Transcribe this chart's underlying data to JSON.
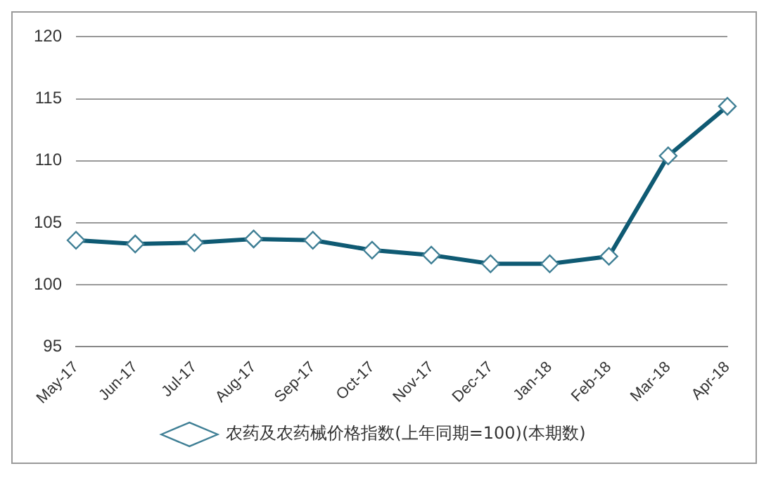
{
  "chart_data": {
    "type": "line",
    "categories": [
      "May-17",
      "Jun-17",
      "Jul-17",
      "Aug-17",
      "Sep-17",
      "Oct-17",
      "Nov-17",
      "Dec-17",
      "Jan-18",
      "Feb-18",
      "Mar-18",
      "Apr-18"
    ],
    "series": [
      {
        "name": "农药及农药械价格指数(上年同期=100)(本期数)",
        "color": "#0f5a73",
        "values": [
          103.6,
          103.3,
          103.4,
          103.7,
          103.6,
          102.8,
          102.4,
          101.7,
          101.7,
          102.3,
          110.4,
          114.4
        ]
      }
    ],
    "ylim": [
      95,
      120
    ],
    "yticks": [
      95,
      100,
      105,
      110,
      115,
      120
    ],
    "grid": "y",
    "legend": "bottom",
    "marker": "diamond",
    "line_style": "solid"
  }
}
